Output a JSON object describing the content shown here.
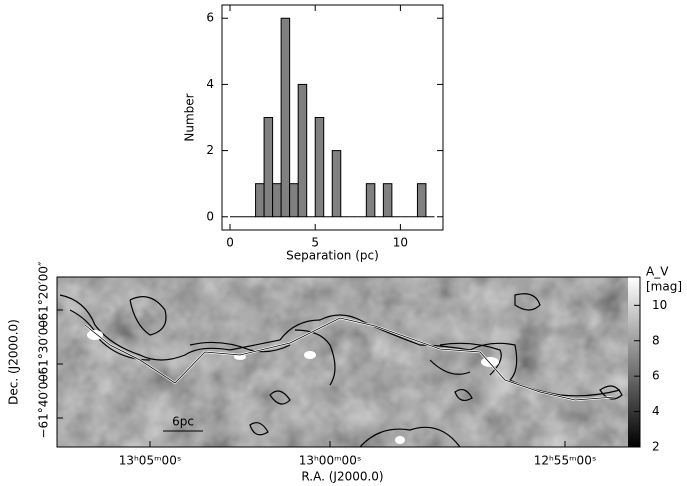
{
  "chart_data": [
    {
      "type": "histogram",
      "xlabel": "Separation (pc)",
      "ylabel": "Number",
      "bins": [
        0,
        0.5,
        1,
        1.5,
        2,
        2.5,
        3,
        3.5,
        4,
        4.5,
        5,
        5.5,
        6,
        6.5,
        7,
        7.5,
        8,
        8.5,
        9,
        9.5,
        10,
        10.5,
        11,
        11.5,
        12
      ],
      "values": [
        0,
        0,
        0,
        1,
        3,
        1,
        6,
        1,
        4,
        0,
        3,
        0,
        2,
        0,
        0,
        0,
        1,
        0,
        1,
        0,
        0,
        0,
        1,
        0
      ],
      "color": "#808080",
      "xlim": [
        -0.47,
        12.5
      ],
      "ylim": [
        -0.4,
        6.4
      ],
      "xticks": [
        0,
        5,
        10
      ],
      "yticks": [
        0,
        2,
        4,
        6
      ]
    },
    {
      "type": "image",
      "xlabel": "R.A. (J2000.0)",
      "ylabel": "Dec. (J2000.0)",
      "xtick_labels": [
        "13ʰ05ᵐ00ˢ",
        "13ʰ00ᵐ00ˢ",
        "12ʰ55ᵐ00ˢ"
      ],
      "ytick_labels": [
        "−61°40′00″",
        "−61°30′00″",
        "−61°20′00″"
      ],
      "colorbar_label": "A_V",
      "colorbar_unit": "[mag]",
      "clim": [
        2,
        11.6
      ],
      "cticks": [
        2,
        4,
        6,
        8,
        10
      ],
      "annotation": "6pc"
    }
  ]
}
